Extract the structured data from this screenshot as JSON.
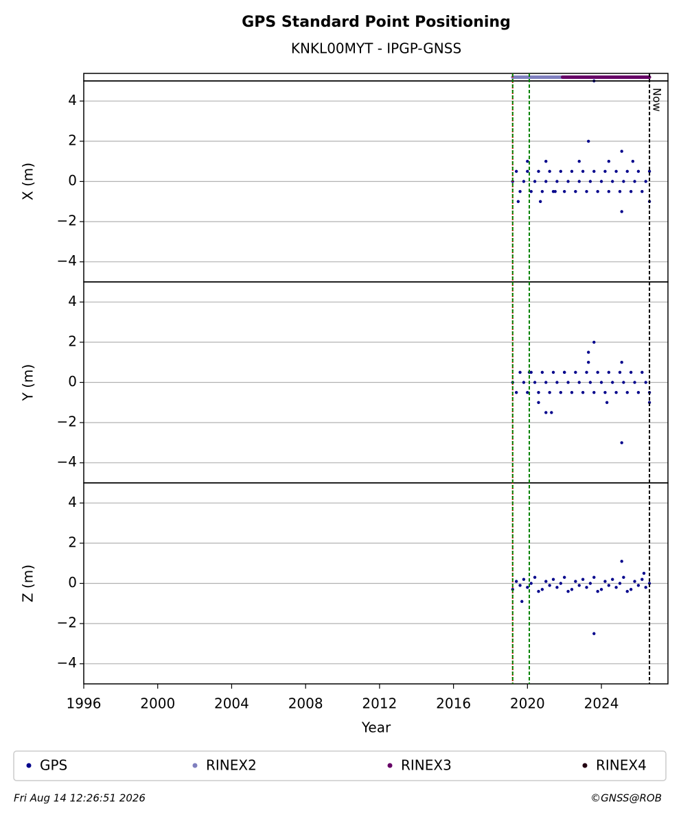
{
  "title": "GPS Standard Point Positioning",
  "subtitle": "KNKL00MYT - IPGP-GNSS",
  "xaxis": {
    "label": "Year",
    "xlim": [
      1996,
      2027.6
    ],
    "xticks": [
      1996,
      2000,
      2004,
      2008,
      2012,
      2016,
      2020,
      2024
    ]
  },
  "markers": [
    {
      "x": 2019.2,
      "color": "#ff0000",
      "dash": "2,2"
    },
    {
      "x": 2019.2,
      "color": "#008000",
      "dash": "5,3"
    },
    {
      "x": 2020.1,
      "color": "#008000",
      "dash": "5,3"
    },
    {
      "x": 2026.6,
      "color": "#000000",
      "dash": "5,3",
      "label": "Now"
    }
  ],
  "chart_data": [
    {
      "type": "availability",
      "series": [
        {
          "name": "RINEX2",
          "color": "#7f7fbf",
          "ranges": [
            [
              2019.2,
              2021.9
            ]
          ]
        },
        {
          "name": "RINEX3",
          "color": "#660066",
          "ranges": [
            [
              2021.9,
              2026.6
            ]
          ]
        },
        {
          "name": "RINEX4",
          "color": "#220011",
          "ranges": []
        }
      ]
    },
    {
      "type": "scatter",
      "ylabel": "X (m)",
      "ylim": [
        -5,
        5
      ],
      "grid": true,
      "yticks": [
        {
          "value": -4,
          "label": "−4"
        },
        {
          "value": -2,
          "label": "−2"
        },
        0,
        2,
        4
      ],
      "x": [
        2019.2,
        2019.4,
        2019.6,
        2019.8,
        2020,
        2020.2,
        2020.4,
        2020.6,
        2020.8,
        2021,
        2021.2,
        2021.4,
        2021.6,
        2021.8,
        2022,
        2022.2,
        2022.4,
        2022.6,
        2022.8,
        2023,
        2023.2,
        2023.4,
        2023.6,
        2023.8,
        2024,
        2024.2,
        2024.4,
        2024.6,
        2024.8,
        2025,
        2025.2,
        2025.4,
        2025.6,
        2025.8,
        2026,
        2026.2,
        2026.4,
        2026.6,
        2019.5,
        2020,
        2020.7,
        2021,
        2021.5,
        2022.8,
        2023.3,
        2023.6,
        2024.4,
        2025.1,
        2025.1,
        2025.7,
        2026.6
      ],
      "series": [
        {
          "name": "GPS",
          "color": "#00008b",
          "values": [
            0,
            0.5,
            -0.5,
            0,
            0.5,
            -0.5,
            0,
            0.5,
            -0.5,
            0,
            0.5,
            -0.5,
            0,
            0.5,
            -0.5,
            0,
            0.5,
            -0.5,
            0,
            0.5,
            -0.5,
            0,
            0.5,
            -0.5,
            0,
            0.5,
            -0.5,
            0,
            0.5,
            -0.5,
            0,
            0.5,
            -0.5,
            0,
            0.5,
            -0.5,
            0,
            0.5,
            -1,
            1,
            -1,
            1,
            -0.5,
            1,
            2,
            5,
            1,
            1.5,
            -1.5,
            1,
            -1
          ]
        }
      ]
    },
    {
      "type": "scatter",
      "ylabel": "Y (m)",
      "ylim": [
        -5,
        5
      ],
      "grid": true,
      "yticks": [
        {
          "value": -4,
          "label": "−4"
        },
        {
          "value": -2,
          "label": "−2"
        },
        0,
        2,
        4
      ],
      "x": [
        2019.2,
        2019.4,
        2019.6,
        2019.8,
        2020,
        2020.2,
        2020.4,
        2020.6,
        2020.8,
        2021,
        2021.2,
        2021.4,
        2021.6,
        2021.8,
        2022,
        2022.2,
        2022.4,
        2022.6,
        2022.8,
        2023,
        2023.2,
        2023.4,
        2023.6,
        2023.8,
        2024,
        2024.2,
        2024.4,
        2024.6,
        2024.8,
        2025,
        2025.2,
        2025.4,
        2025.6,
        2025.8,
        2026,
        2026.2,
        2026.4,
        2026.6,
        2020.1,
        2020.6,
        2021,
        2021.3,
        2022,
        2023.3,
        2023.3,
        2023.6,
        2024.3,
        2025.1,
        2025.1,
        2026.6
      ],
      "series": [
        {
          "name": "GPS",
          "color": "#00008b",
          "values": [
            0,
            -0.5,
            0.5,
            0,
            -0.5,
            0.5,
            0,
            -0.5,
            0.5,
            0,
            -0.5,
            0.5,
            0,
            -0.5,
            0.5,
            0,
            -0.5,
            0.5,
            0,
            -0.5,
            0.5,
            0,
            -0.5,
            0.5,
            0,
            -0.5,
            0.5,
            0,
            -0.5,
            0.5,
            0,
            -0.5,
            0.5,
            0,
            -0.5,
            0.5,
            0,
            -0.5,
            0.5,
            -1,
            -1.5,
            -1.5,
            0.5,
            1.5,
            1,
            2,
            -1,
            1,
            -3,
            -1
          ]
        }
      ]
    },
    {
      "type": "scatter",
      "ylabel": "Z (m)",
      "ylim": [
        -5,
        5
      ],
      "grid": true,
      "yticks": [
        {
          "value": -4,
          "label": "−4"
        },
        {
          "value": -2,
          "label": "−2"
        },
        0,
        2,
        4
      ],
      "x": [
        2019.2,
        2019.4,
        2019.6,
        2019.8,
        2020,
        2020.2,
        2020.4,
        2020.6,
        2020.8,
        2021,
        2021.2,
        2021.4,
        2021.6,
        2021.8,
        2022,
        2022.2,
        2022.4,
        2022.6,
        2022.8,
        2023,
        2023.2,
        2023.4,
        2023.6,
        2023.8,
        2024,
        2024.2,
        2024.4,
        2024.6,
        2024.8,
        2025,
        2025.2,
        2025.4,
        2025.6,
        2025.8,
        2026,
        2026.2,
        2026.4,
        2026.6,
        2019.7,
        2023.6,
        2025.1,
        2026.3
      ],
      "series": [
        {
          "name": "GPS",
          "color": "#00008b",
          "values": [
            -0.3,
            0.1,
            -0.1,
            0.2,
            -0.2,
            0,
            0.3,
            -0.4,
            -0.3,
            0.1,
            -0.1,
            0.2,
            -0.2,
            0,
            0.3,
            -0.4,
            -0.3,
            0.1,
            -0.1,
            0.2,
            -0.2,
            0,
            0.3,
            -0.4,
            -0.3,
            0.1,
            -0.1,
            0.2,
            -0.2,
            0,
            0.3,
            -0.4,
            -0.3,
            0.1,
            -0.1,
            0.2,
            -0.2,
            0,
            -0.9,
            -2.5,
            1.1,
            0.5
          ]
        }
      ]
    }
  ],
  "footer": {
    "date": "Fri Aug 14 12:26:51 2026",
    "credit": "©GNSS@ROB"
  }
}
